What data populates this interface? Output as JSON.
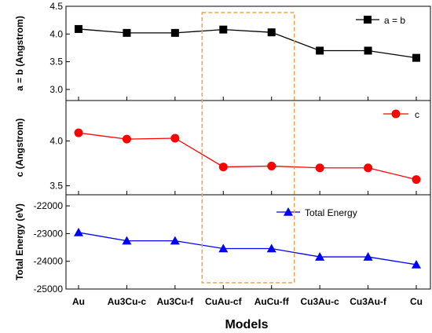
{
  "chart_data": {
    "type": "line",
    "xlabel": "Models",
    "categories": [
      "Au",
      "Au3Cu-c",
      "Au3Cu-f",
      "CuAu-cf",
      "AuCu-ff",
      "Cu3Au-c",
      "Cu3Au-f",
      "Cu"
    ],
    "highlight": {
      "from": "CuAu-cf",
      "to": "AuCu-ff",
      "style": "dashed",
      "color": "#f5a04a"
    },
    "panels": [
      {
        "ylabel": "a = b (Angstrom)",
        "ylim": [
          2.8,
          4.5
        ],
        "yticks": [
          "3.0",
          "3.5",
          "4.0",
          "4.5"
        ],
        "series": [
          {
            "name": "a = b",
            "color": "#000000",
            "marker": "square",
            "values": [
              4.09,
              4.02,
              4.02,
              4.08,
              4.03,
              3.7,
              3.7,
              3.57
            ]
          }
        ],
        "legend_position": "top-right"
      },
      {
        "ylabel": "c (Angstrom)",
        "ylim": [
          3.4,
          4.45
        ],
        "yticks": [
          "3.5",
          "4.0"
        ],
        "series": [
          {
            "name": "c",
            "color": "#ff0000",
            "marker": "circle",
            "values": [
              4.09,
              4.02,
              4.03,
              3.71,
              3.72,
              3.7,
              3.7,
              3.57
            ]
          }
        ],
        "legend_position": "top-right"
      },
      {
        "ylabel": "Total Energy (eV)",
        "ylim": [
          -25000,
          -21600
        ],
        "yticks": [
          "-22000",
          "-23000",
          "-24000",
          "-25000"
        ],
        "series": [
          {
            "name": "Total Energy",
            "color": "#0000ff",
            "marker": "triangle",
            "values": [
              -22960,
              -23260,
              -23260,
              -23540,
              -23540,
              -23840,
              -23840,
              -24120
            ]
          }
        ],
        "legend_position": "top-right"
      }
    ]
  }
}
